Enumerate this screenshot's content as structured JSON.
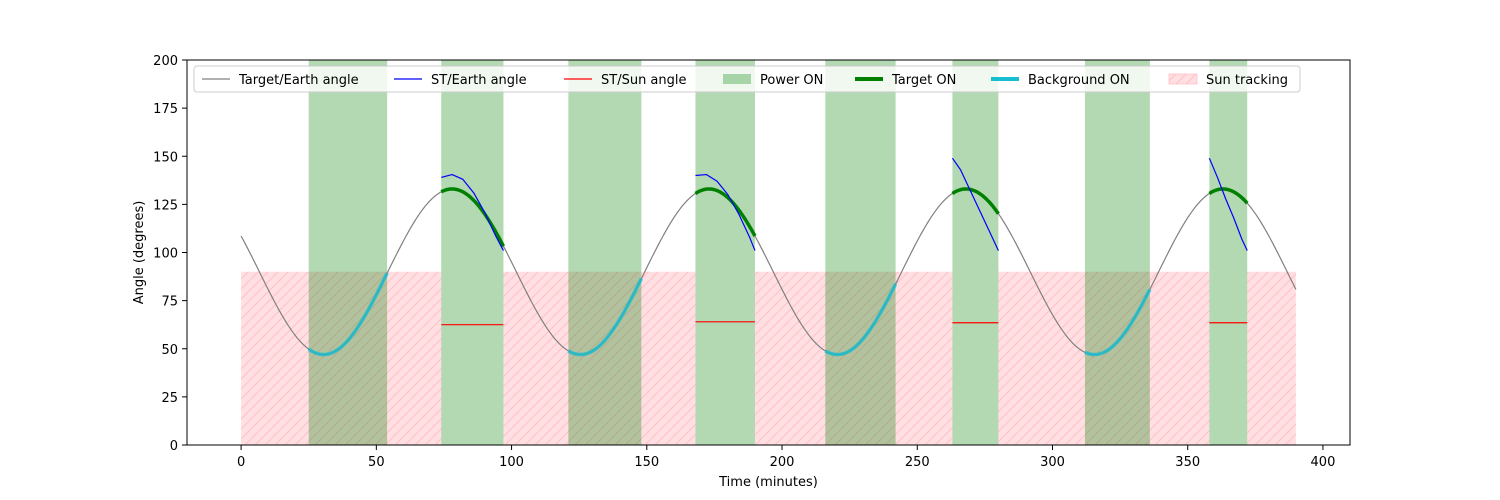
{
  "chart_data": {
    "type": "line",
    "title": "",
    "xlabel": "Time (minutes)",
    "ylabel": "Angle (degrees)",
    "xlim": [
      -20,
      410
    ],
    "ylim": [
      0,
      200
    ],
    "xticks": [
      0,
      50,
      100,
      150,
      200,
      250,
      300,
      350,
      400
    ],
    "yticks": [
      0,
      25,
      50,
      75,
      100,
      125,
      150,
      175,
      200
    ],
    "grid": false,
    "legend_position": "top",
    "colors": {
      "target_earth": "#808080",
      "st_earth": "#0000ff",
      "st_sun": "#ff0000",
      "power_on": "#b3d9b3",
      "target_on": "#008000",
      "background_on": "#17becf",
      "sun_tracking": "#ffc0c6"
    },
    "legend": [
      {
        "key": "target_earth",
        "label": "Target/Earth angle",
        "kind": "line"
      },
      {
        "key": "st_earth",
        "label": "ST/Earth angle",
        "kind": "line"
      },
      {
        "key": "st_sun",
        "label": "ST/Sun angle",
        "kind": "line"
      },
      {
        "key": "power_on",
        "label": "Power ON",
        "kind": "patch"
      },
      {
        "key": "target_on",
        "label": "Target ON",
        "kind": "thick"
      },
      {
        "key": "background_on",
        "label": "Background ON",
        "kind": "thick"
      },
      {
        "key": "sun_tracking",
        "label": "Sun tracking",
        "kind": "hatch"
      }
    ],
    "target_earth_angle": {
      "period_min": 95,
      "mean": 90,
      "amplitude": 43,
      "phase_min": 78,
      "x_range": [
        0,
        390
      ]
    },
    "power_on_spans": [
      [
        25,
        54
      ],
      [
        74,
        97
      ],
      [
        121,
        148
      ],
      [
        168,
        190
      ],
      [
        216,
        242
      ],
      [
        263,
        280
      ],
      [
        312,
        336
      ],
      [
        358,
        372
      ]
    ],
    "sun_tracking": {
      "level": 90,
      "spans": [
        [
          0,
          74
        ],
        [
          97,
          168
        ],
        [
          190,
          263
        ],
        [
          280,
          358
        ],
        [
          372,
          390
        ]
      ]
    },
    "st_earth_angle": [
      {
        "x": [
          74,
          78,
          82,
          86,
          90,
          94,
          97
        ],
        "y": [
          139,
          140.5,
          138,
          131,
          121,
          109,
          101
        ]
      },
      {
        "x": [
          168,
          172,
          176,
          180,
          184,
          188,
          190
        ],
        "y": [
          140,
          140.5,
          137,
          130,
          120,
          108,
          101
        ]
      },
      {
        "x": [
          263,
          266,
          270,
          274,
          278,
          280
        ],
        "y": [
          149,
          143,
          131,
          119,
          107,
          101
        ]
      },
      {
        "x": [
          358,
          361,
          364,
          367,
          370,
          372
        ],
        "y": [
          149,
          139,
          128,
          118,
          107,
          101
        ]
      }
    ],
    "st_sun_angle": [
      {
        "x": [
          74,
          97
        ],
        "y": [
          62.5,
          62.5
        ]
      },
      {
        "x": [
          168,
          190
        ],
        "y": [
          64,
          64
        ]
      },
      {
        "x": [
          263,
          280
        ],
        "y": [
          63.5,
          63.5
        ]
      },
      {
        "x": [
          358,
          372
        ],
        "y": [
          63.5,
          63.5
        ]
      }
    ]
  }
}
